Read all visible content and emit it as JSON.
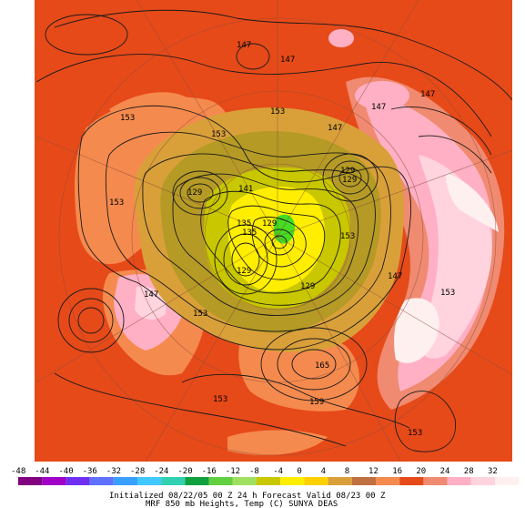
{
  "colors": {
    "c1": "#e64a19",
    "c2": "#f58a4e",
    "c3": "#ff9a66",
    "c4": "#f08a70",
    "c5": "#d9a03a",
    "c6": "#b59a25",
    "c7": "#c8c700",
    "c8": "#ffee00",
    "c9": "#44dd22",
    "pink1": "#ffb0c4",
    "pink2": "#ffd4de",
    "pink3": "#fff0f0"
  },
  "contour_labels": [
    "147",
    "147",
    "147",
    "147",
    "153",
    "153",
    "147",
    "153",
    "153",
    "147",
    "129",
    "129",
    "129",
    "141",
    "135",
    "135",
    "129",
    "153",
    "129",
    "129",
    "147",
    "153",
    "153",
    "147",
    "153",
    "165",
    "153",
    "159",
    "153"
  ],
  "legend": {
    "values": [
      "-48",
      "-44",
      "-40",
      "-36",
      "-32",
      "-28",
      "-24",
      "-20",
      "-16",
      "-12",
      "-8",
      "-4",
      "0",
      "4",
      "8",
      "12",
      "16",
      "20",
      "24",
      "28",
      "32"
    ],
    "colors": [
      "#80007f",
      "#a000c8",
      "#7030f0",
      "#6070ff",
      "#3aa0ff",
      "#40c8ff",
      "#30d0b0",
      "#10a040",
      "#60d040",
      "#a0e060",
      "#c8c700",
      "#ffee00",
      "#ffd000",
      "#d9a03a",
      "#c07040",
      "#f58a4e",
      "#e64a19",
      "#f08a70",
      "#ffb0c4",
      "#ffd4de",
      "#fff0f0"
    ]
  },
  "caption": {
    "line1": "Initialized 08/22/05 00 Z   24 h Forecast Valid 08/23 00 Z",
    "line2": "MRF 850 mb  Heights, Temp (C)       SUNYA DEAS"
  }
}
